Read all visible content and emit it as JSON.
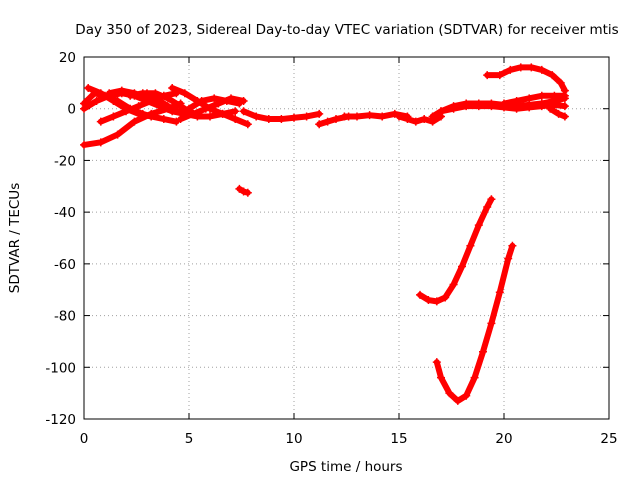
{
  "chart_data": {
    "type": "scatter",
    "title": "Day 350 of 2023, Sidereal Day-to-day VTEC variation (SDTVAR) for receiver mtis",
    "xlabel": "GPS time / hours",
    "ylabel": "SDTVAR / TECUs",
    "xlim": [
      0,
      25
    ],
    "ylim": [
      -120,
      20
    ],
    "xticks": [
      0,
      5,
      10,
      15,
      20,
      25
    ],
    "yticks": [
      -120,
      -100,
      -80,
      -60,
      -40,
      -20,
      0,
      20
    ],
    "grid": true,
    "color": "#ff0000",
    "marker": "plus",
    "series": [
      {
        "x": [
          0,
          0.8,
          1.6,
          2.4,
          3.2,
          4.0,
          4.6
        ],
        "y": [
          -14,
          -13,
          -10,
          -5,
          -2,
          0,
          2
        ]
      },
      {
        "x": [
          0,
          0.6,
          1.2,
          1.8,
          2.4,
          3.0,
          3.6,
          4.2,
          4.8
        ],
        "y": [
          0,
          3,
          5,
          6,
          5,
          3,
          1,
          -1,
          -2
        ]
      },
      {
        "x": [
          0,
          0.5,
          1.0,
          1.6,
          2.2,
          2.8,
          3.2
        ],
        "y": [
          2,
          6,
          5,
          3,
          0,
          -2,
          -3
        ]
      },
      {
        "x": [
          0.2,
          0.8,
          1.4,
          2.0,
          2.6,
          3.2,
          3.8,
          4.4
        ],
        "y": [
          8,
          6,
          3,
          0,
          -2,
          -3,
          -4,
          -5
        ]
      },
      {
        "x": [
          0.8,
          1.4,
          2.0,
          2.6,
          3.2,
          3.8,
          4.4
        ],
        "y": [
          -5,
          -3,
          -1,
          1,
          3,
          5,
          6
        ]
      },
      {
        "x": [
          1.2,
          1.8,
          2.4,
          3.0,
          3.6
        ],
        "y": [
          6,
          7,
          6,
          4,
          2
        ]
      },
      {
        "x": [
          2.2,
          2.8,
          3.4,
          4.0,
          4.6,
          5.2
        ],
        "y": [
          5,
          6,
          6,
          4,
          1,
          -2
        ]
      },
      {
        "x": [
          3.0,
          3.6,
          4.2,
          4.8,
          5.4,
          6.0,
          6.6,
          7.2
        ],
        "y": [
          6,
          3,
          0,
          -2,
          -3,
          -3,
          -2,
          -1
        ]
      },
      {
        "x": [
          4.2,
          4.8,
          5.4,
          6.0,
          6.6,
          7.2,
          7.8
        ],
        "y": [
          8,
          6,
          3,
          0,
          -2,
          -4,
          -6
        ]
      },
      {
        "x": [
          4.6,
          5.2,
          5.8,
          6.4,
          7.0,
          7.6
        ],
        "y": [
          -4,
          -2,
          0,
          2,
          4,
          3
        ]
      },
      {
        "x": [
          5.0,
          5.6,
          6.2,
          6.8,
          7.4
        ],
        "y": [
          0,
          3,
          4,
          3,
          2
        ]
      },
      {
        "x": [
          7.4,
          7.6,
          7.8
        ],
        "y": [
          -31,
          -32,
          -32.5
        ]
      },
      {
        "x": [
          7.6,
          8.2,
          8.8,
          9.4,
          10.0,
          10.6,
          11.2
        ],
        "y": [
          -1,
          -3,
          -4,
          -4,
          -3.5,
          -3,
          -2
        ]
      },
      {
        "x": [
          11.2,
          11.6,
          12.0,
          12.6
        ],
        "y": [
          -6,
          -5,
          -4,
          -3
        ]
      },
      {
        "x": [
          12.4,
          13.0,
          13.6,
          14.2,
          14.8,
          15.4
        ],
        "y": [
          -3,
          -3,
          -2.5,
          -3,
          -2,
          -3
        ]
      },
      {
        "x": [
          15.0,
          15.4,
          15.8,
          16.2,
          16.6,
          17.0
        ],
        "y": [
          -3,
          -4,
          -5,
          -4,
          -5,
          -3
        ]
      },
      {
        "x": [
          16.6,
          17.0,
          17.6,
          18.2,
          18.8,
          19.4,
          20.0,
          20.6,
          21.2,
          21.8,
          22.4,
          22.9
        ],
        "y": [
          -3,
          -1,
          0,
          1,
          1,
          1,
          0.5,
          0,
          0.5,
          1,
          1.5,
          1
        ]
      },
      {
        "x": [
          17.0,
          17.6,
          18.2,
          18.8,
          19.4,
          20.0,
          20.6,
          21.2,
          21.8,
          22.4,
          22.9
        ],
        "y": [
          -1,
          1,
          2,
          2,
          2,
          1.5,
          1,
          1.5,
          2,
          3,
          4
        ]
      },
      {
        "x": [
          20.0,
          20.6,
          21.2,
          21.8,
          22.4,
          22.9
        ],
        "y": [
          2,
          3,
          4,
          5,
          5,
          5
        ]
      },
      {
        "x": [
          19.2,
          19.8,
          20.3,
          20.8,
          21.3,
          21.8,
          22.3,
          22.7,
          22.9
        ],
        "y": [
          13,
          13,
          15,
          16,
          16,
          15,
          13,
          10,
          7
        ]
      },
      {
        "x": [
          22.2,
          22.6,
          22.9
        ],
        "y": [
          0,
          -2,
          -3
        ]
      },
      {
        "x": [
          16.0,
          16.4,
          16.8,
          17.2,
          17.6,
          18.0,
          18.4,
          18.8,
          19.2,
          19.4
        ],
        "y": [
          -72,
          -74,
          -74.5,
          -73,
          -68,
          -61,
          -53,
          -45,
          -38,
          -35
        ]
      },
      {
        "x": [
          16.8,
          17.0,
          17.4,
          17.8,
          18.2,
          18.6,
          19.0,
          19.4,
          19.8,
          20.2,
          20.4
        ],
        "y": [
          -98,
          -104,
          -110,
          -113,
          -111,
          -104,
          -94,
          -83,
          -71,
          -58,
          -53
        ]
      }
    ]
  }
}
